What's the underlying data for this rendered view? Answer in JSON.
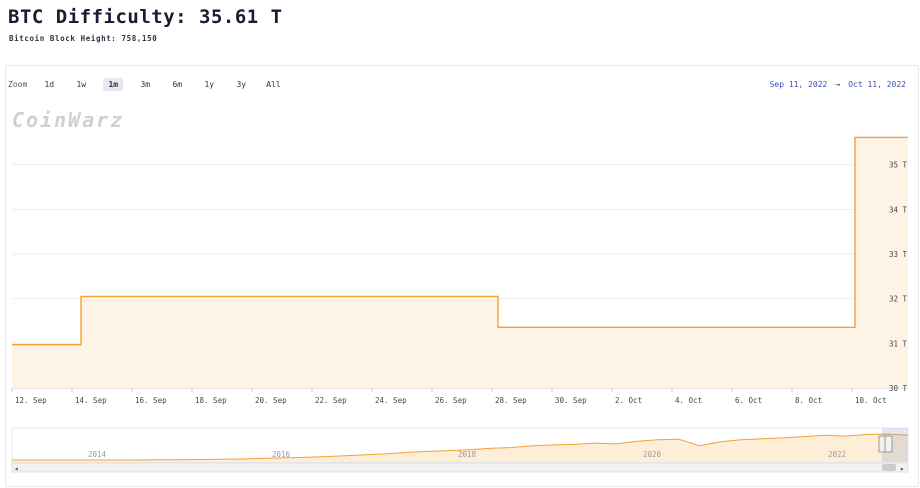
{
  "header": {
    "title": "BTC Difficulty: 35.61 T",
    "subtitle": "Bitcoin Block Height: 758,150"
  },
  "toolbar": {
    "zoom_label": "Zoom",
    "ranges": [
      {
        "label": "1d",
        "active": false
      },
      {
        "label": "1w",
        "active": false
      },
      {
        "label": "1m",
        "active": true
      },
      {
        "label": "3m",
        "active": false
      },
      {
        "label": "6m",
        "active": false
      },
      {
        "label": "1y",
        "active": false
      },
      {
        "label": "3y",
        "active": false
      },
      {
        "label": "All",
        "active": false
      }
    ],
    "date_from": "Sep 11, 2022",
    "date_separator": "→",
    "date_to": "Oct 11, 2022"
  },
  "watermark": "CoinWarz",
  "colors": {
    "line": "#f7a035",
    "area": "#fef4e6",
    "grid": "#eceef2",
    "navigator_line": "#f7a035",
    "navigator_fill": "#fdeed8"
  },
  "chart_data": {
    "type": "line",
    "step": true,
    "x_start": "Sep 12",
    "x_end": "Oct 11",
    "x_ticks": [
      "12. Sep",
      "14. Sep",
      "16. Sep",
      "18. Sep",
      "20. Sep",
      "22. Sep",
      "24. Sep",
      "26. Sep",
      "28. Sep",
      "30. Sep",
      "2. Oct",
      "4. Oct",
      "6. Oct",
      "8. Oct",
      "10. Oct"
    ],
    "y_ticks": [
      "30 T",
      "31 T",
      "32 T",
      "33 T",
      "34 T",
      "35 T"
    ],
    "ylim": [
      30,
      36
    ],
    "y_axis_side": "right",
    "grid": true,
    "series": [
      {
        "points": [
          {
            "x": "Sep 12",
            "y": 30.97
          },
          {
            "x": "Sep 14.3",
            "y": 30.97
          },
          {
            "x": "Sep 14.3",
            "y": 32.05
          },
          {
            "x": "Sep 28.2",
            "y": 32.05
          },
          {
            "x": "Sep 28.2",
            "y": 31.36
          },
          {
            "x": "Oct 10.1",
            "y": 31.36
          },
          {
            "x": "Oct 10.1",
            "y": 35.61
          },
          {
            "x": "Oct 11",
            "y": 35.61
          }
        ]
      }
    ],
    "navigator": {
      "x_ticks": [
        "2014",
        "2016",
        "2018",
        "2020",
        "2022"
      ],
      "y_ticks": [],
      "shape": [
        0,
        0,
        0,
        0,
        0,
        0,
        0,
        0.01,
        0.01,
        0.02,
        0.03,
        0.04,
        0.06,
        0.08,
        0.1,
        0.13,
        0.16,
        0.2,
        0.24,
        0.3,
        0.33,
        0.36,
        0.4,
        0.45,
        0.48,
        0.55,
        0.58,
        0.6,
        0.65,
        0.62,
        0.72,
        0.78,
        0.8,
        0.55,
        0.7,
        0.78,
        0.82,
        0.85,
        0.9,
        0.95,
        0.92,
        0.98,
        1.0,
        0.95
      ]
    }
  }
}
